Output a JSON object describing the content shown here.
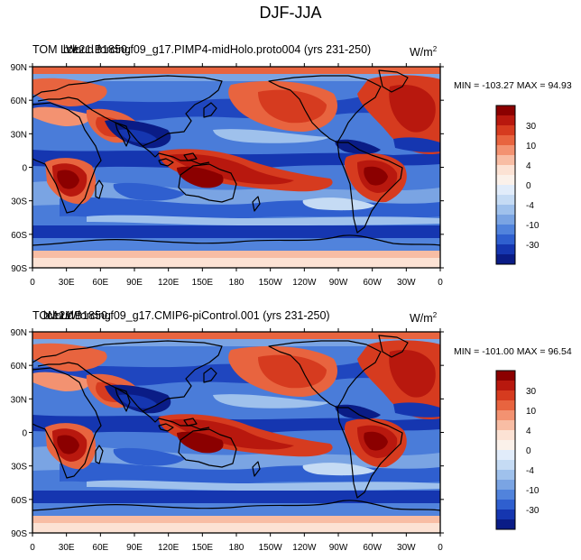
{
  "figure": {
    "title": "DJF-JJA"
  },
  "panels": [
    {
      "overlapped_labels": [
        "TOM LW",
        "b.e21.B1850.f09_g17.PIMP4-midHolo.proto004 (yrs 231-250)",
        "cloud forcing"
      ],
      "units_text": "W/m",
      "units_exponent": "2",
      "minmax_text": "MIN = -103.27  MAX =   94.93"
    },
    {
      "overlapped_labels": [
        "TOM LW",
        "b.e21.B1850.f09_g17.CMIP6-piControl.001 (yrs 231-250)",
        "cloud forcing"
      ],
      "units_text": "W/m",
      "units_exponent": "2",
      "minmax_text": "MIN = -101.00  MAX =   96.54"
    }
  ],
  "axes": {
    "y_ticks": [
      "90N",
      "60N",
      "30N",
      "0",
      "30S",
      "60S",
      "90S"
    ],
    "x_ticks": [
      "0",
      "30E",
      "60E",
      "90E",
      "120E",
      "150E",
      "180",
      "150W",
      "120W",
      "90W",
      "60W",
      "30W",
      "0"
    ]
  },
  "colorbar": {
    "labels": [
      "30",
      "10",
      "4",
      "0",
      "-4",
      "-10",
      "-30"
    ],
    "colors": [
      "#8b0000",
      "#b8180e",
      "#d63b1f",
      "#e8643f",
      "#f39271",
      "#f8bda4",
      "#fce2d4",
      "#fbf1ea",
      "#e1ecfa",
      "#c5dbf4",
      "#9fc1ec",
      "#7aa4e3",
      "#5183dc",
      "#2f5fcf",
      "#1536b0",
      "#0a1c86"
    ]
  }
}
